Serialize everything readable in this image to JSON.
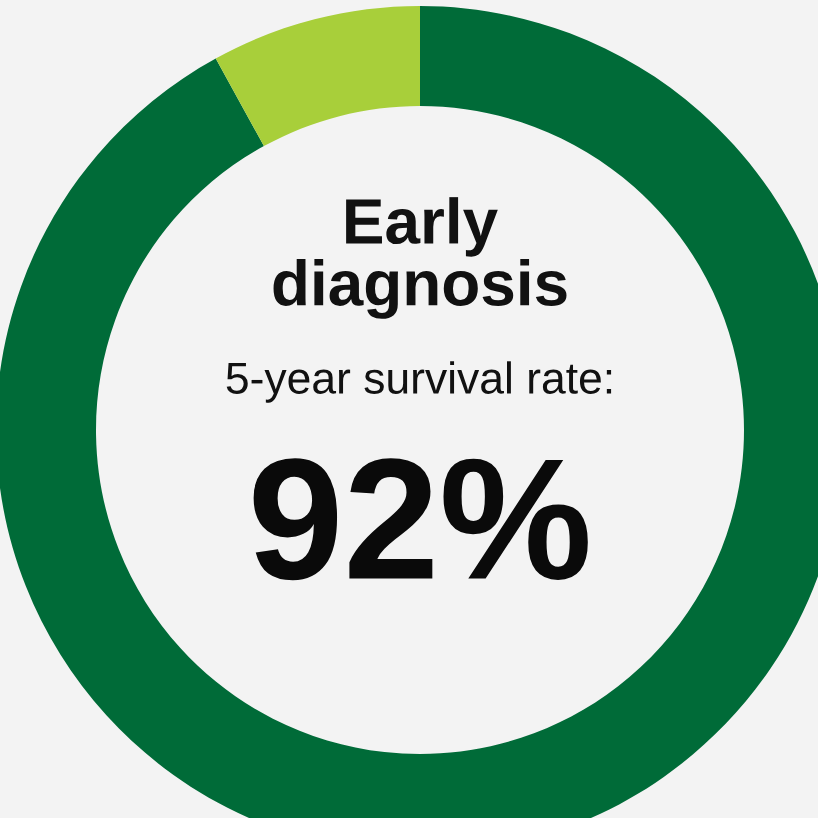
{
  "chart_data": {
    "type": "donut",
    "title": "Early\ndiagnosis",
    "subtitle": "5-year survival rate:",
    "categories": [
      null,
      null
    ],
    "values": [
      92,
      8
    ],
    "colors": [
      "#006b38",
      "#a8cf3a"
    ],
    "annotations": [
      "92%"
    ]
  }
}
